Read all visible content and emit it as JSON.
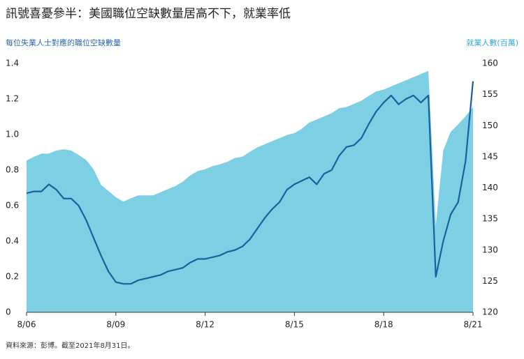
{
  "chart_data": {
    "type": "line",
    "title": "訊號喜憂參半：美國職位空缺數量居高不下，就業率低",
    "y_label": "每位失業人士對應的職位空缺數量",
    "y2_label": "就業人數(百萬)",
    "source": "資料來源：彭博。截至2021年8月31日。",
    "categories": [
      "8/06",
      null,
      null,
      null,
      null,
      null,
      null,
      null,
      null,
      null,
      null,
      null,
      "8/09",
      null,
      null,
      null,
      null,
      null,
      null,
      null,
      null,
      null,
      null,
      null,
      "8/12",
      null,
      null,
      null,
      null,
      null,
      null,
      null,
      null,
      null,
      null,
      null,
      "8/15",
      null,
      null,
      null,
      null,
      null,
      null,
      null,
      null,
      null,
      null,
      null,
      "8/18",
      null,
      null,
      null,
      null,
      null,
      null,
      null,
      null,
      null,
      null,
      null,
      "8/21"
    ],
    "series": [
      {
        "kind": "area",
        "axis": "y2",
        "color": "#7dd0e4",
        "values": [
          144.4,
          145.0,
          145.5,
          145.5,
          146.0,
          146.2,
          146.0,
          145.3,
          144.5,
          143.0,
          140.5,
          139.5,
          138.5,
          137.8,
          138.3,
          138.8,
          138.8,
          138.8,
          139.3,
          139.8,
          140.3,
          141.0,
          142.0,
          142.7,
          143.0,
          143.5,
          143.8,
          144.2,
          144.8,
          145.0,
          145.8,
          146.5,
          147.0,
          147.5,
          148.0,
          148.5,
          148.8,
          149.5,
          150.5,
          151.0,
          151.5,
          152.0,
          152.8,
          153.0,
          153.5,
          154.0,
          154.8,
          155.5,
          155.8,
          156.3,
          156.8,
          157.3,
          157.8,
          158.3,
          158.8,
          134.0,
          146.0,
          149.0,
          150.2,
          151.5,
          153.0
        ]
      },
      {
        "kind": "line",
        "axis": "y",
        "color": "#1b5f9e",
        "values": [
          0.67,
          0.68,
          0.68,
          0.72,
          0.69,
          0.64,
          0.64,
          0.6,
          0.52,
          0.42,
          0.32,
          0.23,
          0.17,
          0.16,
          0.16,
          0.18,
          0.19,
          0.2,
          0.21,
          0.23,
          0.24,
          0.25,
          0.28,
          0.3,
          0.3,
          0.31,
          0.32,
          0.34,
          0.35,
          0.37,
          0.41,
          0.47,
          0.53,
          0.58,
          0.62,
          0.69,
          0.72,
          0.74,
          0.76,
          0.72,
          0.78,
          0.8,
          0.88,
          0.93,
          0.94,
          0.98,
          1.06,
          1.13,
          1.18,
          1.22,
          1.17,
          1.2,
          1.22,
          1.18,
          1.22,
          0.2,
          0.4,
          0.55,
          0.62,
          0.85,
          1.3
        ]
      }
    ],
    "ylim": [
      0,
      1.4
    ],
    "yticks": [
      0,
      0.2,
      0.4,
      0.6,
      0.8,
      {
        "value": 1,
        "label": "1.0"
      },
      1.2,
      1.4
    ],
    "y2lim": [
      120,
      160
    ],
    "y2ticks": [
      120,
      125,
      130,
      135,
      140,
      145,
      150,
      155,
      160
    ]
  }
}
